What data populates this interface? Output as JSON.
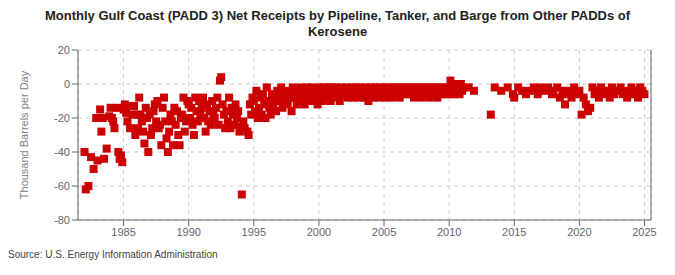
{
  "chart_data": {
    "type": "scatter",
    "title": "Monthly Gulf Coast (PADD 3) Net Receipts by Pipeline, Tanker, and Barge from Other PADDs of\nKerosene",
    "ylabel": "Thousand Barrels per Day",
    "annotations": [
      "Source: U.S. Energy Information Administration"
    ],
    "color": "#cc0000",
    "marker": "square",
    "grid": true,
    "xlim": [
      1981.5,
      2025.5
    ],
    "ylim": [
      -80,
      20
    ],
    "xticks": [
      1985,
      1990,
      1995,
      2000,
      2005,
      2010,
      2015,
      2020,
      2025
    ],
    "yticks": [
      -80,
      -60,
      -40,
      -20,
      0,
      20
    ],
    "x": [
      1982.0,
      1982.1,
      1982.3,
      1982.5,
      1982.7,
      1982.9,
      1983.0,
      1983.2,
      1983.3,
      1983.4,
      1983.5,
      1983.7,
      1983.9,
      1984.0,
      1984.1,
      1984.2,
      1984.3,
      1984.5,
      1984.6,
      1984.7,
      1984.8,
      1984.9,
      1985.0,
      1985.1,
      1985.2,
      1985.3,
      1985.5,
      1985.6,
      1985.7,
      1985.8,
      1985.9,
      1986.0,
      1986.1,
      1986.2,
      1986.3,
      1986.4,
      1986.5,
      1986.6,
      1986.7,
      1986.8,
      1986.9,
      1987.0,
      1987.1,
      1987.2,
      1987.3,
      1987.4,
      1987.5,
      1987.6,
      1987.7,
      1987.8,
      1987.9,
      1988.0,
      1988.1,
      1988.2,
      1988.3,
      1988.4,
      1988.5,
      1988.6,
      1988.7,
      1988.8,
      1988.9,
      1989.0,
      1989.1,
      1989.2,
      1989.3,
      1989.4,
      1989.5,
      1989.6,
      1989.7,
      1989.8,
      1989.9,
      1990.0,
      1990.1,
      1990.2,
      1990.3,
      1990.4,
      1990.5,
      1990.6,
      1990.7,
      1990.8,
      1990.9,
      1991.0,
      1991.1,
      1991.2,
      1991.3,
      1991.4,
      1991.5,
      1991.6,
      1991.7,
      1991.8,
      1991.9,
      1992.0,
      1992.1,
      1992.2,
      1992.3,
      1992.4,
      1992.5,
      1992.6,
      1992.7,
      1992.8,
      1992.9,
      1993.0,
      1993.1,
      1993.2,
      1993.3,
      1993.4,
      1993.5,
      1993.6,
      1993.7,
      1993.8,
      1993.9,
      1994.0,
      1994.08,
      1994.2,
      1994.3,
      1994.5,
      1994.6,
      1994.7,
      1994.8,
      1994.9,
      1995.0,
      1995.1,
      1995.2,
      1995.3,
      1995.4,
      1995.5,
      1995.6,
      1995.7,
      1995.8,
      1995.9,
      1996.0,
      1996.1,
      1996.2,
      1996.3,
      1996.4,
      1996.5,
      1996.6,
      1996.7,
      1996.8,
      1996.9,
      1997.0,
      1997.1,
      1997.2,
      1997.3,
      1997.4,
      1997.5,
      1997.6,
      1997.7,
      1997.8,
      1997.9,
      1998.0,
      1998.1,
      1998.2,
      1998.3,
      1998.4,
      1998.5,
      1998.6,
      1998.7,
      1998.8,
      1998.9,
      1999.0,
      1999.1,
      1999.2,
      1999.3,
      1999.4,
      1999.5,
      1999.6,
      1999.7,
      1999.8,
      1999.9,
      2000.0,
      2000.1,
      2000.2,
      2000.3,
      2000.4,
      2000.5,
      2000.6,
      2000.7,
      2000.8,
      2000.9,
      2001.0,
      2001.1,
      2001.2,
      2001.3,
      2001.4,
      2001.5,
      2001.6,
      2001.7,
      2001.8,
      2001.9,
      2002.0,
      2002.1,
      2002.2,
      2002.3,
      2002.4,
      2002.5,
      2002.6,
      2002.7,
      2002.8,
      2002.9,
      2003.0,
      2003.1,
      2003.2,
      2003.3,
      2003.4,
      2003.5,
      2003.6,
      2003.7,
      2003.8,
      2003.9,
      2004.0,
      2004.1,
      2004.2,
      2004.3,
      2004.4,
      2004.5,
      2004.6,
      2004.7,
      2004.8,
      2004.9,
      2005.0,
      2005.1,
      2005.2,
      2005.3,
      2005.4,
      2005.5,
      2005.6,
      2005.7,
      2005.8,
      2005.9,
      2006.0,
      2006.1,
      2006.2,
      2006.3,
      2006.4,
      2006.5,
      2006.6,
      2006.7,
      2006.8,
      2006.9,
      2007.0,
      2007.1,
      2007.2,
      2007.3,
      2007.4,
      2007.5,
      2007.6,
      2007.7,
      2007.8,
      2007.9,
      2008.0,
      2008.1,
      2008.2,
      2008.3,
      2008.4,
      2008.5,
      2008.6,
      2008.7,
      2008.8,
      2008.9,
      2009.0,
      2009.1,
      2009.2,
      2009.3,
      2009.4,
      2009.5,
      2009.6,
      2009.7,
      2009.8,
      2009.9,
      2010.0,
      2010.1,
      2010.2,
      2010.3,
      2010.4,
      2010.5,
      2010.6,
      2010.7,
      2010.8,
      2010.9,
      2011.0,
      2011.1,
      2011.5,
      2011.9,
      2013.2,
      2013.5,
      2014.0,
      2014.5,
      2014.9,
      2015.0,
      2015.3,
      2015.6,
      2015.9,
      2016.2,
      2016.5,
      2016.8,
      2017.0,
      2017.3,
      2017.6,
      2017.9,
      2018.0,
      2018.3,
      2018.5,
      2018.7,
      2018.9,
      2019.0,
      2019.2,
      2019.4,
      2019.6,
      2019.8,
      2020.0,
      2020.17,
      2020.33,
      2020.5,
      2020.67,
      2020.83,
      2021.0,
      2021.17,
      2021.33,
      2021.5,
      2021.67,
      2021.83,
      2022.0,
      2022.17,
      2022.33,
      2022.5,
      2022.67,
      2022.83,
      2023.0,
      2023.17,
      2023.33,
      2023.5,
      2023.67,
      2023.83,
      2024.0,
      2024.17,
      2024.33,
      2024.5,
      2024.67,
      2024.83,
      2025.0
    ],
    "values": [
      -40,
      -62,
      -60,
      -43,
      -50,
      -20,
      -45,
      -15,
      -28,
      -20,
      -44,
      -38,
      -19,
      -14,
      -20,
      -22,
      -26,
      -14,
      -40,
      -44,
      -42,
      -46,
      -15,
      -12,
      -17,
      -22,
      -26,
      -13,
      -18,
      -13,
      -30,
      -18,
      -26,
      -8,
      -18,
      -22,
      -28,
      -35,
      -14,
      -20,
      -40,
      -18,
      -30,
      -26,
      -16,
      -12,
      -22,
      -10,
      -26,
      -24,
      -36,
      -14,
      -8,
      -22,
      -32,
      -40,
      -28,
      -18,
      -22,
      -36,
      -14,
      -24,
      -16,
      -30,
      -36,
      -20,
      -18,
      -8,
      -28,
      -22,
      -10,
      -12,
      -20,
      -14,
      -24,
      -30,
      -8,
      -16,
      -22,
      -10,
      -18,
      -14,
      -8,
      -20,
      -28,
      -12,
      -22,
      -16,
      -24,
      -10,
      -18,
      -20,
      -14,
      -8,
      -24,
      2,
      4,
      -12,
      -18,
      -26,
      -16,
      -22,
      -8,
      -26,
      -14,
      -18,
      -24,
      -12,
      -20,
      -16,
      -28,
      -25,
      -65,
      -22,
      -26,
      -28,
      -30,
      -12,
      -18,
      -8,
      -10,
      -16,
      -4,
      -20,
      -14,
      -8,
      -18,
      -6,
      -12,
      -20,
      -2,
      -10,
      -14,
      -18,
      -6,
      -12,
      -8,
      -16,
      -4,
      -10,
      -6,
      -2,
      -14,
      -8,
      -10,
      -6,
      -12,
      -4,
      -8,
      -16,
      -2,
      -8,
      -4,
      -12,
      -6,
      -10,
      -2,
      -8,
      -4,
      -12,
      -6,
      -2,
      -8,
      -4,
      -10,
      -2,
      -6,
      -8,
      -4,
      -12,
      -2,
      -8,
      -4,
      -10,
      -2,
      -6,
      -8,
      -2,
      -6,
      -10,
      -2,
      -4,
      -8,
      -2,
      -6,
      -4,
      -10,
      -2,
      -6,
      -4,
      -6,
      -2,
      -8,
      -4,
      -6,
      -2,
      -8,
      -4,
      -6,
      -2,
      -4,
      -8,
      -2,
      -6,
      -4,
      -8,
      -2,
      -4,
      -10,
      -6,
      -2,
      -4,
      -8,
      -2,
      -6,
      -4,
      -8,
      -2,
      -4,
      -6,
      -2,
      -8,
      -4,
      -6,
      -2,
      -4,
      -8,
      -2,
      -6,
      -4,
      -2,
      -4,
      -8,
      -2,
      -6,
      -2,
      -4,
      -6,
      -2,
      -4,
      -6,
      -2,
      -4,
      -8,
      -2,
      -4,
      -6,
      -2,
      -4,
      -8,
      -2,
      -4,
      -6,
      -2,
      -4,
      -8,
      -2,
      -4,
      -6,
      -2,
      -4,
      -8,
      -2,
      -4,
      -6,
      -2,
      -4,
      -6,
      -2,
      -4,
      -6,
      2,
      -2,
      -4,
      -6,
      0,
      -2,
      -4,
      -6,
      0,
      -4,
      -2,
      -2,
      -4,
      -18,
      -2,
      -4,
      -2,
      -6,
      -8,
      -2,
      -4,
      -6,
      -4,
      -2,
      -6,
      -2,
      -4,
      -2,
      -6,
      -4,
      -2,
      -8,
      -4,
      -12,
      -6,
      -4,
      -8,
      -2,
      -6,
      -4,
      -18,
      -8,
      -12,
      -16,
      -14,
      -2,
      -6,
      -4,
      -8,
      -2,
      -4,
      -6,
      -4,
      -8,
      -2,
      -6,
      -4,
      -4,
      -2,
      -6,
      -4,
      -8,
      -6,
      -2,
      -6,
      -4,
      -8,
      -2,
      -4,
      -6
    ]
  }
}
